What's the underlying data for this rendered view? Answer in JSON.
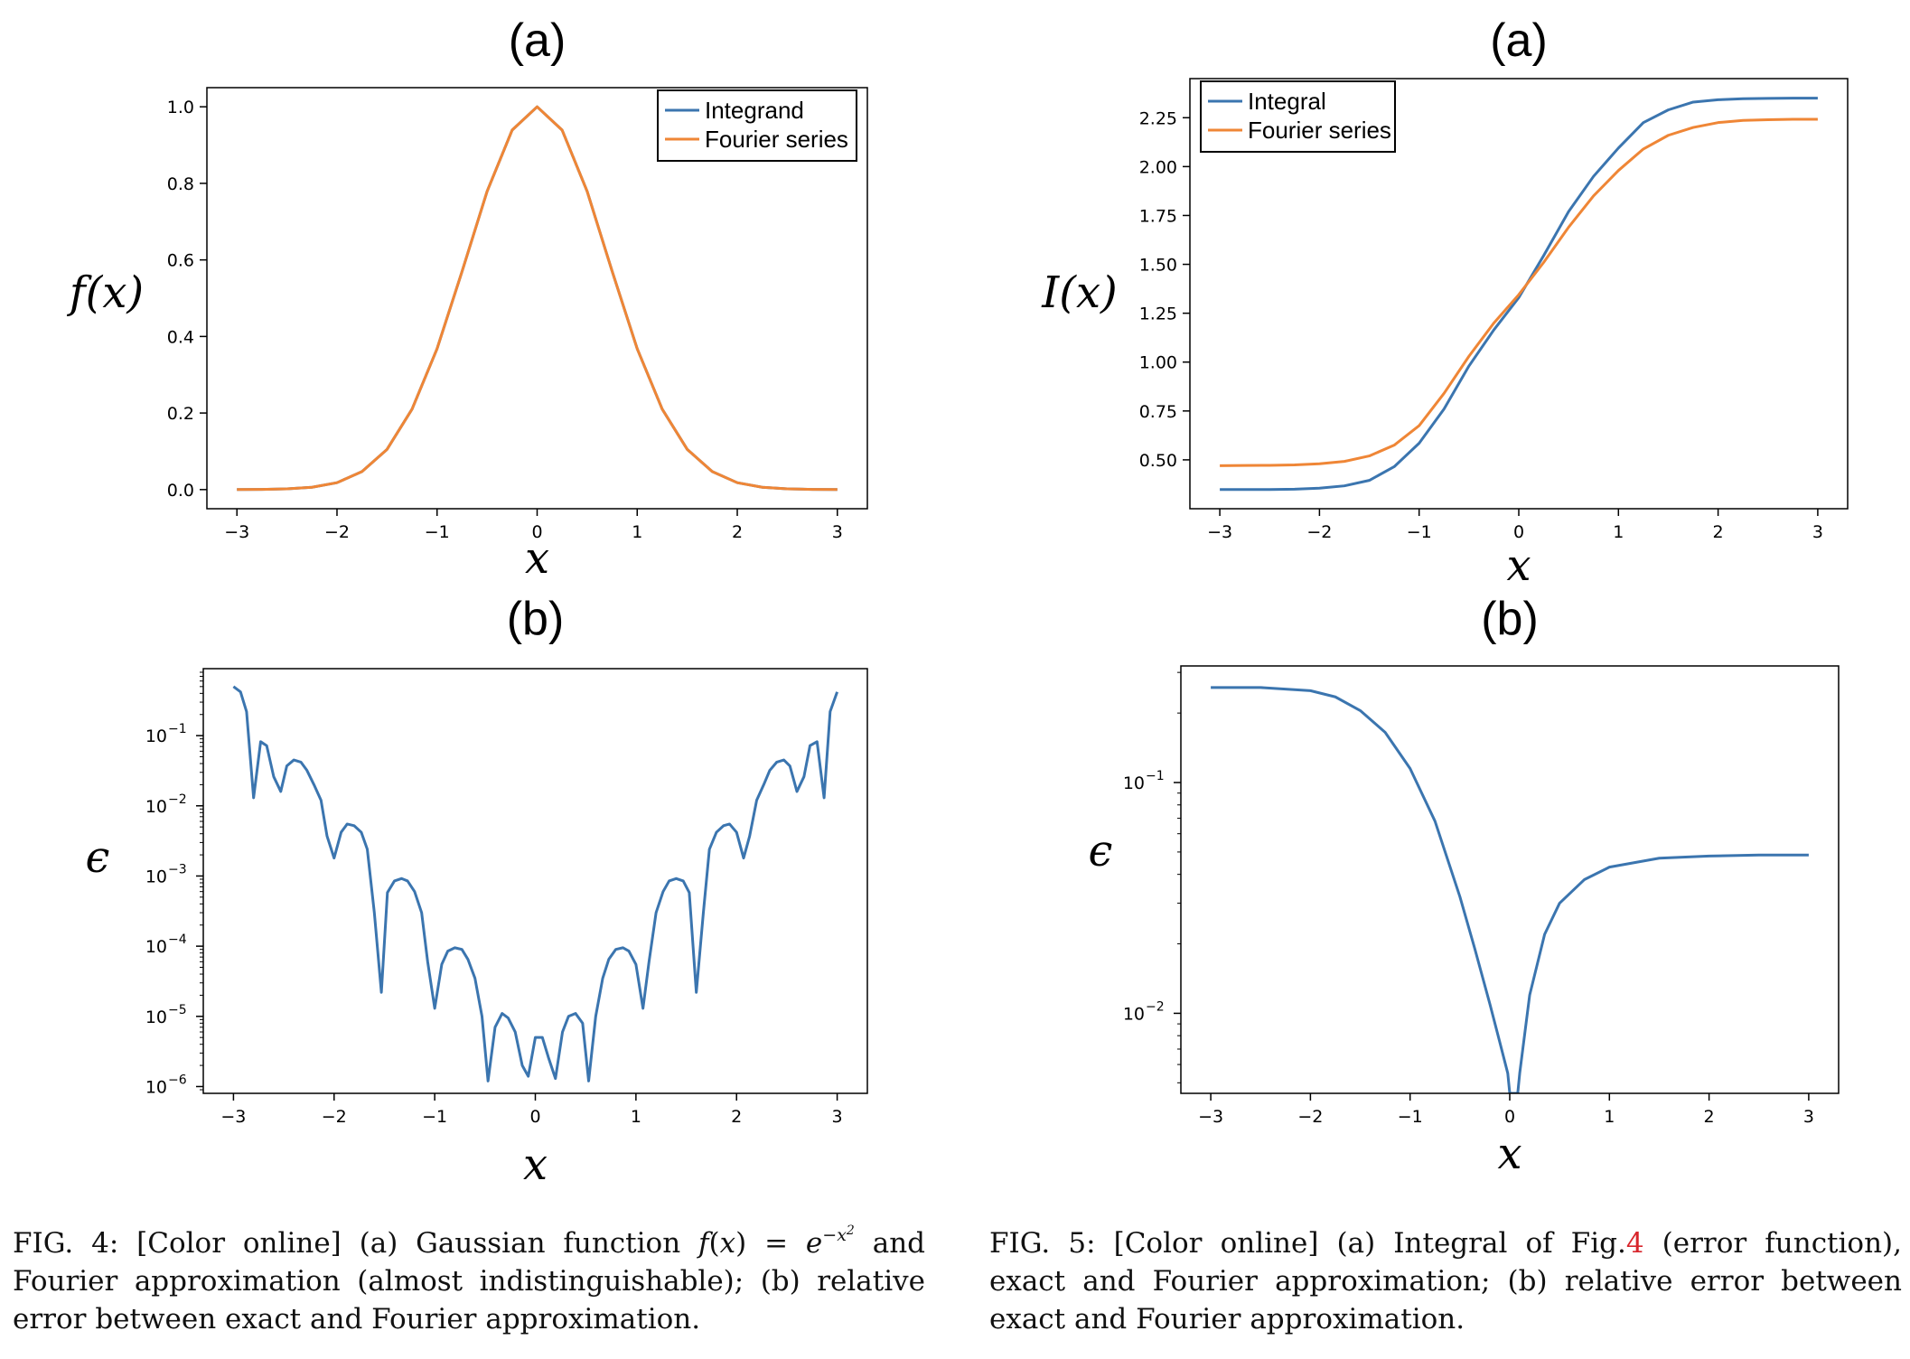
{
  "chart_data": [
    {
      "id": "fig4a",
      "type": "line",
      "title": "(a)",
      "xlabel": "x",
      "ylabel": "f(x)",
      "xlim": [
        -3.3,
        3.3
      ],
      "ylim": [
        -0.05,
        1.05
      ],
      "xticks": [
        -3,
        -2,
        -1,
        0,
        1,
        2,
        3
      ],
      "xtick_labels": [
        "−3",
        "−2",
        "−1",
        "0",
        "1",
        "2",
        "3"
      ],
      "yticks": [
        0.0,
        0.2,
        0.4,
        0.6,
        0.8,
        1.0
      ],
      "ytick_labels": [
        "0.0",
        "0.2",
        "0.4",
        "0.6",
        "0.8",
        "1.0"
      ],
      "grid": false,
      "legend": "top-right",
      "x": [
        -3,
        -2.75,
        -2.5,
        -2.25,
        -2,
        -1.75,
        -1.5,
        -1.25,
        -1,
        -0.75,
        -0.5,
        -0.25,
        0,
        0.25,
        0.5,
        0.75,
        1,
        1.25,
        1.5,
        1.75,
        2,
        2.25,
        2.5,
        2.75,
        3
      ],
      "series": [
        {
          "name": "Integrand",
          "color": "#3b75af",
          "values": [
            0.0001,
            0.0005,
            0.002,
            0.006,
            0.018,
            0.047,
            0.105,
            0.21,
            0.368,
            0.57,
            0.779,
            0.939,
            1.0,
            0.939,
            0.779,
            0.57,
            0.368,
            0.21,
            0.105,
            0.047,
            0.018,
            0.006,
            0.002,
            0.0005,
            0.0001
          ]
        },
        {
          "name": "Fourier series",
          "color": "#ef8636",
          "values": [
            0.0001,
            0.0005,
            0.002,
            0.006,
            0.018,
            0.047,
            0.105,
            0.21,
            0.368,
            0.57,
            0.779,
            0.939,
            1.0,
            0.939,
            0.779,
            0.57,
            0.368,
            0.21,
            0.105,
            0.047,
            0.018,
            0.006,
            0.002,
            0.0005,
            0.0001
          ]
        }
      ]
    },
    {
      "id": "fig4b",
      "type": "line",
      "title": "(b)",
      "xlabel": "x",
      "ylabel": "ϵ",
      "yscale": "log",
      "xlim": [
        -3.3,
        3.3
      ],
      "ylim": [
        8e-07,
        0.9
      ],
      "xticks": [
        -3,
        -2,
        -1,
        0,
        1,
        2,
        3
      ],
      "xtick_labels": [
        "−3",
        "−2",
        "−1",
        "0",
        "1",
        "2",
        "3"
      ],
      "yticks": [
        1e-06,
        1e-05,
        0.0001,
        0.001,
        0.01,
        0.1
      ],
      "ytick_labels": [
        [
          "10",
          "−6"
        ],
        [
          "10",
          "−5"
        ],
        [
          "10",
          "−4"
        ],
        [
          "10",
          "−3"
        ],
        [
          "10",
          "−2"
        ],
        [
          "10",
          "−1"
        ]
      ],
      "grid": false,
      "x": [
        -3.0,
        -2.93,
        -2.87,
        -2.8,
        -2.73,
        -2.67,
        -2.6,
        -2.53,
        -2.47,
        -2.4,
        -2.33,
        -2.27,
        -2.2,
        -2.13,
        -2.07,
        -2.0,
        -1.93,
        -1.87,
        -1.8,
        -1.73,
        -1.67,
        -1.6,
        -1.53,
        -1.47,
        -1.4,
        -1.33,
        -1.27,
        -1.2,
        -1.13,
        -1.07,
        -1.0,
        -0.93,
        -0.87,
        -0.8,
        -0.73,
        -0.67,
        -0.6,
        -0.53,
        -0.47,
        -0.4,
        -0.33,
        -0.27,
        -0.2,
        -0.13,
        -0.07,
        0.0,
        0.07,
        0.13,
        0.2,
        0.27,
        0.33,
        0.4,
        0.47,
        0.53,
        0.6,
        0.67,
        0.73,
        0.8,
        0.87,
        0.93,
        1.0,
        1.07,
        1.13,
        1.2,
        1.27,
        1.33,
        1.4,
        1.47,
        1.53,
        1.6,
        1.67,
        1.73,
        1.8,
        1.87,
        1.93,
        2.0,
        2.07,
        2.13,
        2.2,
        2.27,
        2.33,
        2.4,
        2.47,
        2.53,
        2.6,
        2.67,
        2.73,
        2.8,
        2.87,
        2.93,
        3.0
      ],
      "series": [
        {
          "name": "",
          "color": "#3b75af",
          "values": [
            0.5,
            0.42,
            0.22,
            0.013,
            0.082,
            0.072,
            0.026,
            0.016,
            0.037,
            0.045,
            0.042,
            0.032,
            0.02,
            0.012,
            0.0037,
            0.0018,
            0.0042,
            0.0055,
            0.0052,
            0.0042,
            0.0024,
            0.0003,
            2.2e-05,
            0.00058,
            0.00085,
            0.00092,
            0.00085,
            0.0006,
            0.0003,
            6e-05,
            1.3e-05,
            5.5e-05,
            8.5e-05,
            9.5e-05,
            9e-05,
            6.5e-05,
            3.5e-05,
            1e-05,
            1.2e-06,
            7e-06,
            1.1e-05,
            9.5e-06,
            6e-06,
            2e-06,
            1.4e-06,
            5e-06,
            5e-06,
            2.6e-06,
            1.3e-06,
            6e-06,
            1e-05,
            1.1e-05,
            8e-06,
            1.2e-06,
            1e-05,
            3.5e-05,
            6.5e-05,
            9e-05,
            9.5e-05,
            8.5e-05,
            5.5e-05,
            1.3e-05,
            6e-05,
            0.0003,
            0.0006,
            0.00085,
            0.00092,
            0.00085,
            0.00058,
            2.2e-05,
            0.0003,
            0.0024,
            0.0042,
            0.0052,
            0.0055,
            0.0042,
            0.0018,
            0.0037,
            0.012,
            0.02,
            0.032,
            0.042,
            0.045,
            0.037,
            0.016,
            0.026,
            0.072,
            0.082,
            0.013,
            0.22,
            0.42
          ]
        }
      ]
    },
    {
      "id": "fig5a",
      "type": "line",
      "title": "(a)",
      "xlabel": "x",
      "ylabel": "I(x)",
      "xlim": [
        -3.3,
        3.3
      ],
      "ylim": [
        0.25,
        2.45
      ],
      "xticks": [
        -3,
        -2,
        -1,
        0,
        1,
        2,
        3
      ],
      "xtick_labels": [
        "−3",
        "−2",
        "−1",
        "0",
        "1",
        "2",
        "3"
      ],
      "yticks": [
        0.5,
        0.75,
        1.0,
        1.25,
        1.5,
        1.75,
        2.0,
        2.25
      ],
      "ytick_labels": [
        "0.50",
        "0.75",
        "1.00",
        "1.25",
        "1.50",
        "1.75",
        "2.00",
        "2.25"
      ],
      "grid": false,
      "legend": "top-left",
      "x": [
        -3,
        -2.75,
        -2.5,
        -2.25,
        -2,
        -1.75,
        -1.5,
        -1.25,
        -1,
        -0.75,
        -0.5,
        -0.25,
        0,
        0.25,
        0.5,
        0.75,
        1,
        1.25,
        1.5,
        1.75,
        2,
        2.25,
        2.5,
        2.75,
        3
      ],
      "series": [
        {
          "name": "Integral",
          "color": "#3b75af",
          "values": [
            0.348,
            0.348,
            0.348,
            0.35,
            0.355,
            0.367,
            0.395,
            0.465,
            0.585,
            0.76,
            0.98,
            1.165,
            1.33,
            1.545,
            1.77,
            1.95,
            2.095,
            2.225,
            2.29,
            2.33,
            2.342,
            2.347,
            2.349,
            2.35,
            2.35
          ]
        },
        {
          "name": "Fourier series",
          "color": "#ef8636",
          "values": [
            0.47,
            0.471,
            0.472,
            0.474,
            0.48,
            0.492,
            0.52,
            0.575,
            0.675,
            0.84,
            1.03,
            1.2,
            1.345,
            1.51,
            1.69,
            1.85,
            1.98,
            2.09,
            2.16,
            2.2,
            2.225,
            2.236,
            2.24,
            2.242,
            2.242
          ]
        }
      ]
    },
    {
      "id": "fig5b",
      "type": "line",
      "title": "(b)",
      "xlabel": "x",
      "ylabel": "ϵ",
      "yscale": "log",
      "xlim": [
        -3.3,
        3.3
      ],
      "ylim": [
        0.0045,
        0.32
      ],
      "xticks": [
        -3,
        -2,
        -1,
        0,
        1,
        2,
        3
      ],
      "xtick_labels": [
        "−3",
        "−2",
        "−1",
        "0",
        "1",
        "2",
        "3"
      ],
      "yticks": [
        0.01,
        0.1
      ],
      "ytick_labels": [
        [
          "10",
          "−2"
        ],
        [
          "10",
          "−1"
        ]
      ],
      "grid": false,
      "x": [
        -3.0,
        -2.5,
        -2.0,
        -1.75,
        -1.5,
        -1.25,
        -1.0,
        -0.75,
        -0.5,
        -0.35,
        -0.2,
        -0.1,
        -0.02,
        0.0,
        0.08,
        0.1,
        0.2,
        0.35,
        0.5,
        0.75,
        1.0,
        1.5,
        2.0,
        2.5,
        3.0
      ],
      "series": [
        {
          "name": "",
          "color": "#3b75af",
          "values": [
            0.258,
            0.258,
            0.25,
            0.235,
            0.205,
            0.165,
            0.115,
            0.068,
            0.032,
            0.019,
            0.011,
            0.0075,
            0.0055,
            0.0045,
            0.0045,
            0.0055,
            0.012,
            0.022,
            0.03,
            0.038,
            0.043,
            0.047,
            0.048,
            0.0485,
            0.0485
          ]
        }
      ]
    }
  ],
  "captions": [
    {
      "id": "fig4",
      "parts": [
        "FIG. 4: [Color online] (a) Gaussian function ",
        "f",
        "(",
        "x",
        ") = ",
        "e",
        "−x",
        "2",
        " and Fourier approximation (almost indistinguishable); (b) relative error between exact and Fourier approximation."
      ]
    },
    {
      "id": "fig5",
      "parts": [
        "FIG. 5: [Color online] (a) Integral of Fig.",
        "4",
        " (error function), exact and Fourier approximation; (b) relative error between exact and Fourier approximation."
      ]
    }
  ]
}
